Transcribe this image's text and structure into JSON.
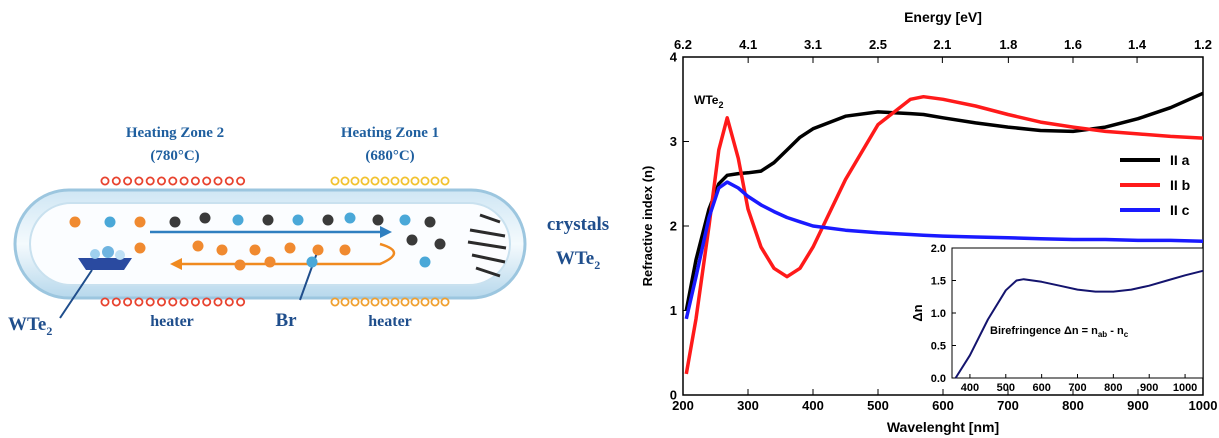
{
  "diagram": {
    "zone2": {
      "title": "Heating Zone 2",
      "temp": "(780°C)"
    },
    "zone1": {
      "title": "Heating Zone 1",
      "temp": "(680°C)"
    },
    "crystals": {
      "text": "crystals",
      "formula": {
        "text": "WTe",
        "sub": "2"
      }
    },
    "source": {
      "text": "WTe",
      "sub": "2"
    },
    "heater_left": "heater",
    "br": "Br",
    "heater_right": "heater"
  },
  "chart_data": [
    {
      "type": "line",
      "x_label": "Wavelenght [nm]",
      "y_label": "Refractive index (n)",
      "x2_label": "Energy [eV]",
      "annotation": {
        "text": "WTe",
        "sub": "2"
      },
      "x": [
        205,
        220,
        240,
        255,
        268,
        285,
        300,
        320,
        340,
        360,
        380,
        400,
        450,
        500,
        550,
        570,
        600,
        650,
        700,
        750,
        800,
        850,
        900,
        950,
        1000
      ],
      "series": [
        {
          "name": "II a",
          "color": "#000000",
          "values": [
            1.0,
            1.6,
            2.2,
            2.5,
            2.6,
            2.62,
            2.63,
            2.65,
            2.75,
            2.9,
            3.05,
            3.15,
            3.3,
            3.35,
            3.33,
            3.32,
            3.28,
            3.22,
            3.17,
            3.13,
            3.12,
            3.17,
            3.27,
            3.4,
            3.57
          ]
        },
        {
          "name": "II b",
          "color": "#ff1a1a",
          "values": [
            0.25,
            0.9,
            2.0,
            2.9,
            3.28,
            2.8,
            2.2,
            1.75,
            1.5,
            1.4,
            1.5,
            1.75,
            2.55,
            3.2,
            3.5,
            3.53,
            3.5,
            3.42,
            3.32,
            3.23,
            3.17,
            3.12,
            3.09,
            3.06,
            3.04
          ]
        },
        {
          "name": "II c",
          "color": "#1a1aff",
          "values": [
            0.9,
            1.4,
            2.1,
            2.45,
            2.52,
            2.45,
            2.35,
            2.25,
            2.17,
            2.1,
            2.05,
            2.0,
            1.95,
            1.92,
            1.9,
            1.89,
            1.88,
            1.87,
            1.86,
            1.85,
            1.84,
            1.84,
            1.83,
            1.83,
            1.82
          ]
        }
      ],
      "xlim": [
        200,
        1000
      ],
      "xticks": [
        200,
        300,
        400,
        500,
        600,
        700,
        800,
        900,
        1000
      ],
      "ylim": [
        0,
        4
      ],
      "yticks": [
        0,
        1,
        2,
        3,
        4
      ],
      "x2lim": [
        6.2,
        1.24
      ],
      "x2ticks": [
        {
          "value": 6.2,
          "label": "6.2"
        },
        {
          "value": 4.13,
          "label": "4.1"
        },
        {
          "value": 3.1,
          "label": "3.1"
        },
        {
          "value": 2.48,
          "label": "2.5"
        },
        {
          "value": 2.07,
          "label": "2.1"
        },
        {
          "value": 1.77,
          "label": "1.8"
        },
        {
          "value": 1.55,
          "label": "1.6"
        },
        {
          "value": 1.38,
          "label": "1.4"
        },
        {
          "value": 1.24,
          "label": "1.2"
        }
      ],
      "legend": "right"
    },
    {
      "type": "line",
      "y_label": "Δn",
      "annotation": [
        "Birefringence Δn = n",
        "ab",
        " - n",
        "c"
      ],
      "x": [
        360,
        400,
        450,
        500,
        530,
        550,
        600,
        650,
        700,
        750,
        800,
        850,
        900,
        950,
        1000,
        1050
      ],
      "series": [
        {
          "color": "#14146e",
          "values": [
            0.0,
            0.35,
            0.9,
            1.35,
            1.5,
            1.52,
            1.48,
            1.42,
            1.36,
            1.33,
            1.33,
            1.36,
            1.42,
            1.5,
            1.58,
            1.65
          ]
        }
      ],
      "xlim": [
        350,
        1050
      ],
      "xticks": [
        400,
        500,
        600,
        700,
        800,
        900,
        1000
      ],
      "ylim": [
        0,
        2
      ],
      "yticks": [
        {
          "value": 0,
          "label": "0.0"
        },
        0.5,
        {
          "value": 1,
          "label": "1.0"
        },
        1.5,
        {
          "value": 2,
          "label": "2.0"
        }
      ]
    }
  ]
}
